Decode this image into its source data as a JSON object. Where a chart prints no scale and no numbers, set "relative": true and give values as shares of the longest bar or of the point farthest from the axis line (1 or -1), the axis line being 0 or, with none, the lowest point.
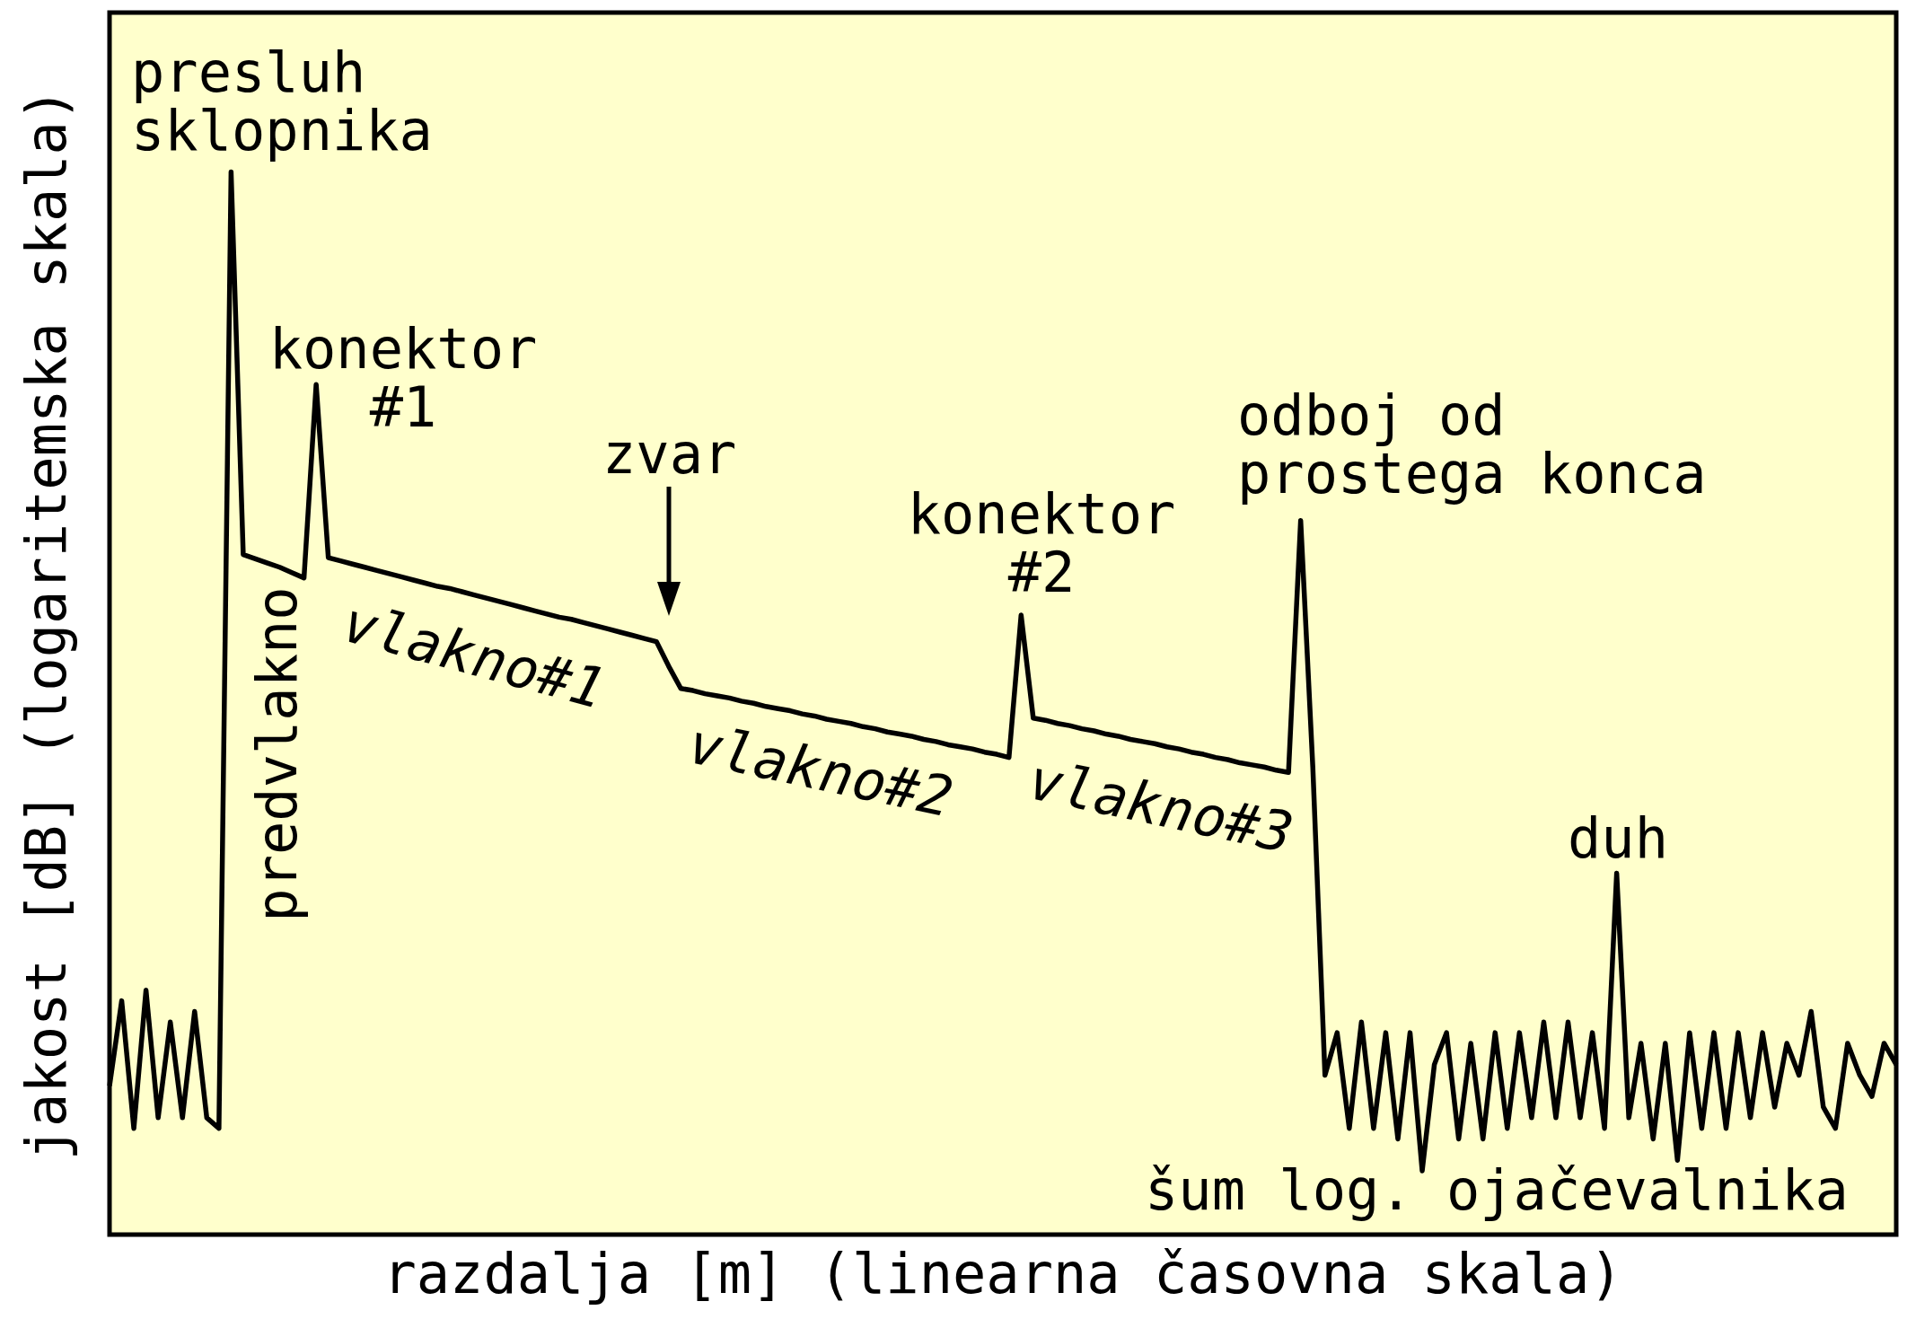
{
  "chart_data": {
    "type": "line",
    "relative": true,
    "xlabel": "razdalja [m] (linearna časovna skala)",
    "ylabel": "jakost [dB] (logaritemska skala)",
    "legend": false,
    "tick_labels": false,
    "marker": "none",
    "line_style": "solid",
    "categories": [
      null,
      null,
      null,
      null,
      null,
      null,
      null,
      null,
      null,
      null,
      null,
      null,
      null,
      null,
      null,
      null,
      null,
      null,
      null,
      null,
      null,
      null,
      null,
      null,
      null,
      null,
      null,
      null,
      null,
      null,
      null,
      null,
      null,
      null,
      null,
      null,
      null,
      null,
      null,
      null,
      null,
      null,
      null,
      null,
      null,
      null,
      null,
      null,
      null,
      null,
      null,
      null,
      null,
      null,
      null,
      null,
      null,
      null,
      null,
      null,
      null,
      null,
      null,
      null,
      null,
      null,
      null,
      null,
      null,
      null,
      null,
      null,
      null,
      null,
      null,
      null,
      null,
      null,
      null,
      null,
      null,
      null,
      null,
      null,
      null,
      null,
      null,
      null,
      null,
      null,
      null,
      null,
      null,
      null,
      null,
      null,
      null,
      null,
      null,
      null,
      null,
      null,
      null,
      null,
      null,
      null,
      null,
      null,
      null,
      null,
      null,
      null,
      null,
      null,
      null,
      null,
      null,
      null,
      null,
      null,
      null,
      null,
      null,
      null,
      null,
      null,
      null,
      null,
      null,
      null,
      null,
      null,
      null,
      null,
      null,
      null,
      null,
      null,
      null,
      null,
      null,
      null,
      null,
      null,
      null,
      null,
      null,
      null
    ],
    "series": [
      {
        "color": "#000000",
        "values": [
          0.14,
          0.22,
          0.1,
          0.23,
          0.11,
          0.2,
          0.11,
          0.21,
          0.11,
          0.1,
          1.0,
          0.64,
          0.636,
          0.632,
          0.628,
          0.623,
          0.618,
          0.8,
          0.637,
          0.634,
          0.631,
          0.628,
          0.625,
          0.622,
          0.619,
          0.616,
          0.613,
          0.61,
          0.608,
          0.605,
          0.602,
          0.599,
          0.596,
          0.593,
          0.59,
          0.587,
          0.584,
          0.581,
          0.579,
          0.576,
          0.573,
          0.57,
          0.567,
          0.564,
          0.561,
          0.558,
          0.535,
          0.514,
          0.512,
          0.509,
          0.507,
          0.505,
          0.502,
          0.5,
          0.497,
          0.495,
          0.493,
          0.49,
          0.488,
          0.485,
          0.483,
          0.481,
          0.478,
          0.476,
          0.473,
          0.471,
          0.469,
          0.466,
          0.464,
          0.461,
          0.459,
          0.457,
          0.454,
          0.452,
          0.449,
          0.583,
          0.486,
          0.484,
          0.481,
          0.479,
          0.476,
          0.474,
          0.471,
          0.469,
          0.466,
          0.464,
          0.462,
          0.459,
          0.457,
          0.454,
          0.452,
          0.449,
          0.447,
          0.444,
          0.442,
          0.44,
          0.437,
          0.435,
          0.672,
          0.44,
          0.15,
          0.19,
          0.1,
          0.2,
          0.1,
          0.19,
          0.09,
          0.19,
          0.06,
          0.16,
          0.19,
          0.09,
          0.18,
          0.09,
          0.19,
          0.1,
          0.19,
          0.11,
          0.2,
          0.11,
          0.2,
          0.11,
          0.19,
          0.1,
          0.34,
          0.11,
          0.18,
          0.09,
          0.18,
          0.07,
          0.19,
          0.1,
          0.19,
          0.1,
          0.19,
          0.11,
          0.19,
          0.12,
          0.18,
          0.15,
          0.21,
          0.12,
          0.1,
          0.18,
          0.15,
          0.13,
          0.18,
          0.16
        ]
      }
    ],
    "annotations": [
      "presluh sklopnika",
      "konektor #1",
      "zvar",
      "konektor #2",
      "odboj od prostega konca",
      "duh",
      "šum log. ojačevalnika",
      "predvlakno",
      "vlakno#1",
      "vlakno#2",
      "vlakno#3"
    ]
  }
}
